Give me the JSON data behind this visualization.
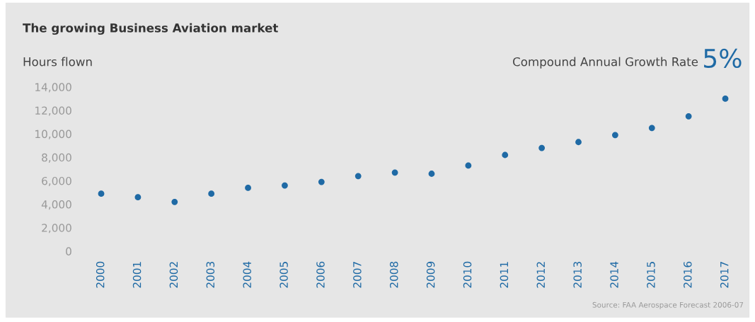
{
  "chart_data": {
    "type": "scatter",
    "title": "The growing Business Aviation market",
    "ylabel": "Hours flown",
    "annotations": [
      "Compound Annual Growth Rate",
      "5%",
      "Source: FAA Aerospace Forecast 2006-07"
    ],
    "categories": [
      "2000",
      "2001",
      "2002",
      "2003",
      "2004",
      "2005",
      "2006",
      "2007",
      "2008",
      "2009",
      "2010",
      "2011",
      "2012",
      "2013",
      "2014",
      "2015",
      "2016",
      "2017"
    ],
    "series": [
      {
        "color": "#1f6aa5",
        "values": [
          4900,
          4600,
          4200,
          4900,
          5400,
          5600,
          5900,
          6400,
          6700,
          6600,
          7300,
          8200,
          8800,
          9300,
          9900,
          10500,
          11500,
          13000
        ]
      }
    ],
    "ylim": [
      0,
      14000
    ],
    "yticks": [
      {
        "value": 0,
        "label": "0"
      },
      {
        "value": 2000,
        "label": "2,000"
      },
      {
        "value": 4000,
        "label": "4,000"
      },
      {
        "value": 6000,
        "label": "6,000"
      },
      {
        "value": 8000,
        "label": "8,000"
      },
      {
        "value": 10000,
        "label": "10,000"
      },
      {
        "value": 12000,
        "label": "12,000"
      },
      {
        "value": 14000,
        "label": "14,000"
      }
    ],
    "grid": false,
    "legend": false,
    "marker": "circle"
  }
}
